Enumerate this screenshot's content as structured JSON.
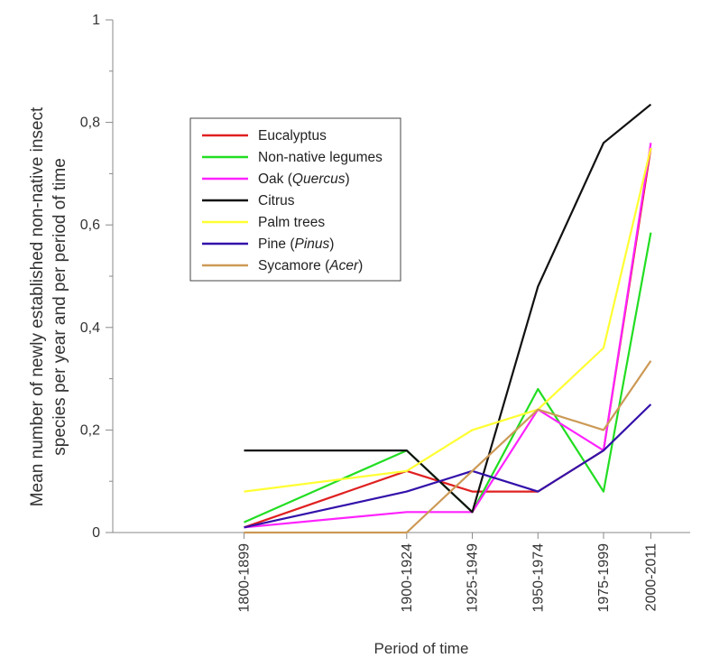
{
  "chart_data": {
    "type": "line",
    "title": "",
    "xlabel": "Period of time",
    "ylabel_lines": [
      "Mean number of newly established  non-native insect",
      "species per year and per period of time"
    ],
    "ylim": [
      0,
      1
    ],
    "yticks": [
      0,
      0.2,
      0.4,
      0.6,
      0.8,
      1
    ],
    "ytick_labels": [
      "0",
      "0,2",
      "0,4",
      "0,6",
      "0,8",
      "1"
    ],
    "x": [
      1850,
      1912,
      1937,
      1962,
      1987,
      2005
    ],
    "xlim": [
      1800,
      2020
    ],
    "categories": [
      "1800-1899",
      "1900-1924",
      "1925-1949",
      "1950-1974",
      "1975-1999",
      "2000-2011"
    ],
    "legend_position": "upper-left",
    "series": [
      {
        "label": "Eucalyptus",
        "label_italic": "",
        "label_suffix": "",
        "color": "#e02020",
        "values": [
          0.01,
          0.12,
          0.08,
          0.08,
          0.16,
          0.75
        ]
      },
      {
        "label": "Non-native legumes",
        "label_italic": "",
        "label_suffix": "",
        "color": "#22dd22",
        "values": [
          0.02,
          0.16,
          0.04,
          0.28,
          0.08,
          0.585
        ]
      },
      {
        "label": "Oak (",
        "label_italic": "Quercus",
        "label_suffix": ")",
        "color": "#ff22ff",
        "values": [
          0.01,
          0.04,
          0.04,
          0.24,
          0.16,
          0.76
        ]
      },
      {
        "label": "Citrus",
        "label_italic": "",
        "label_suffix": "",
        "color": "#111111",
        "values": [
          0.16,
          0.16,
          0.04,
          0.48,
          0.76,
          0.835
        ]
      },
      {
        "label": "Palm trees",
        "label_italic": "",
        "label_suffix": "",
        "color": "#ffff33",
        "values": [
          0.08,
          0.12,
          0.2,
          0.24,
          0.36,
          0.75
        ]
      },
      {
        "label": "Pine (",
        "label_italic": "Pinus",
        "label_suffix": ")",
        "color": "#3311aa",
        "values": [
          0.01,
          0.08,
          0.12,
          0.08,
          0.16,
          0.25
        ]
      },
      {
        "label": "Sycamore (",
        "label_italic": "Acer",
        "label_suffix": ")",
        "color": "#cc9955",
        "values": [
          0.0,
          0.0,
          0.12,
          0.24,
          0.2,
          0.335
        ]
      }
    ]
  }
}
